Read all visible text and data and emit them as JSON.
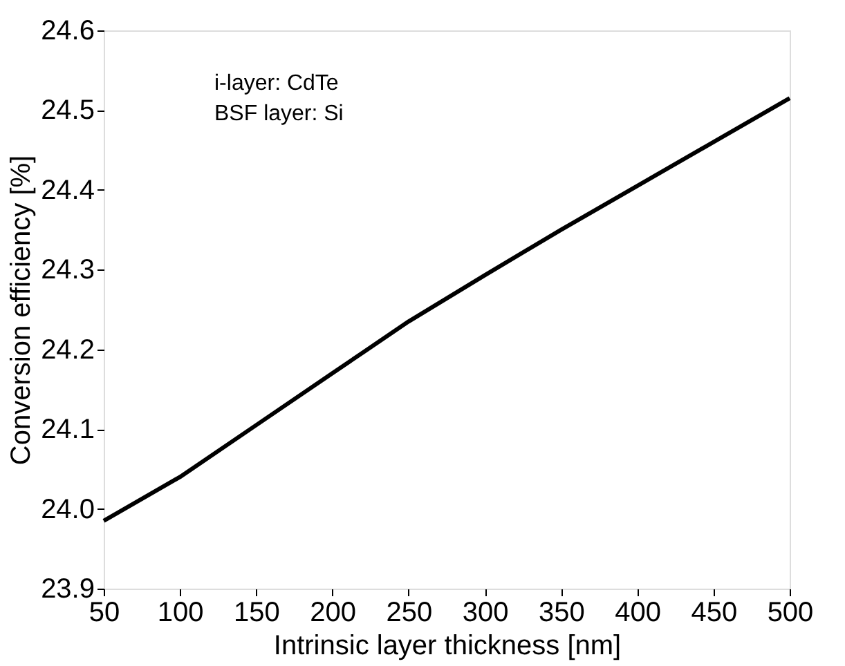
{
  "chart_data": {
    "type": "line",
    "xlabel": "Intrinsic layer thickness [nm]",
    "ylabel": "Conversion efficiency [%]",
    "x": [
      50,
      100,
      150,
      200,
      250,
      300,
      350,
      400,
      450,
      500
    ],
    "series": [
      {
        "color": "#000000",
        "values": [
          23.985,
          24.04,
          24.105,
          24.17,
          24.235,
          24.293,
          24.35,
          24.405,
          24.46,
          24.515
        ]
      }
    ],
    "xlim": [
      50,
      500
    ],
    "xticks": [
      50,
      100,
      150,
      200,
      250,
      300,
      350,
      400,
      450,
      500
    ],
    "ylim": [
      23.9,
      24.6
    ],
    "yticks": [
      23.9,
      {
        "value": 24.0,
        "label": "24.0"
      },
      24.1,
      24.2,
      24.3,
      24.4,
      24.5,
      24.6
    ],
    "annotations": [
      "i-layer: CdTe",
      "BSF layer: Si"
    ],
    "grid": false,
    "marker": "none",
    "line_style": "solid"
  }
}
